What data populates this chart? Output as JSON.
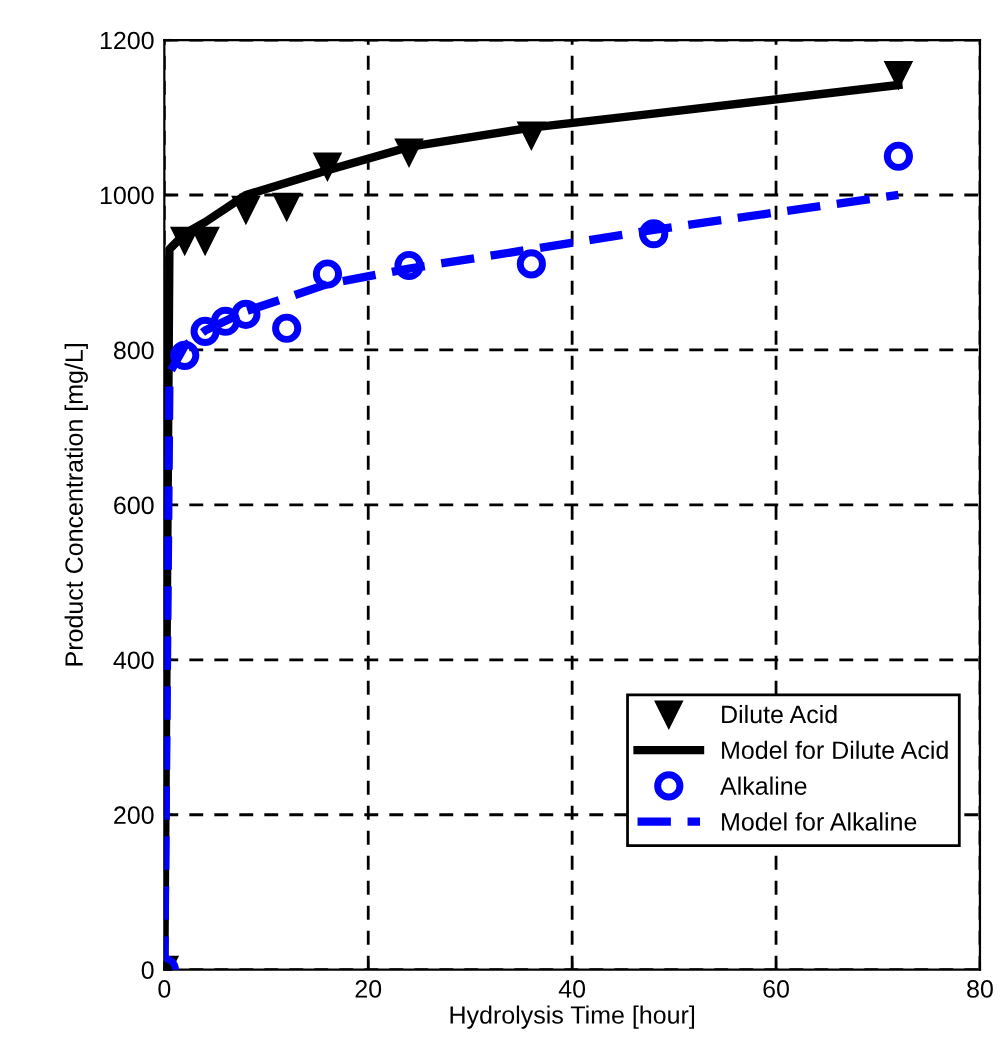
{
  "chart_data": {
    "type": "line",
    "xlabel": "Hydrolysis Time [hour]",
    "ylabel": "Product Concentration [mg/L]",
    "xlim": [
      0,
      80
    ],
    "xticks": [
      0,
      20,
      40,
      60,
      80
    ],
    "ylim": [
      0,
      1200
    ],
    "yticks": [
      0,
      200,
      400,
      600,
      800,
      1000,
      1200
    ],
    "grid": true,
    "legend": "bottom right",
    "series": [
      {
        "name": "Dilute Acid",
        "type": "scatter",
        "marker": "triangle",
        "color": "#000000",
        "x": [
          0,
          2,
          4,
          8,
          12,
          16,
          24,
          36,
          72
        ],
        "values": [
          0,
          941,
          941,
          981,
          985,
          1037,
          1055,
          1077,
          1155
        ]
      },
      {
        "name": "Model for Dilute Acid",
        "line_style": "solid",
        "color": "#000000",
        "x": [
          0,
          0.5,
          2,
          4,
          8,
          16,
          24,
          36,
          48,
          72
        ],
        "values": [
          0,
          930,
          950,
          965,
          1000,
          1032,
          1062,
          1087,
          1105,
          1142
        ]
      },
      {
        "name": "Alkaline",
        "type": "scatter",
        "marker": "circle",
        "color": "#0000ff",
        "x": [
          0,
          2,
          4,
          6,
          8,
          12,
          16,
          24,
          36,
          48,
          72
        ],
        "values": [
          0,
          793,
          824,
          837,
          846,
          828,
          898,
          909,
          911,
          950,
          1050
        ]
      },
      {
        "name": "Model for Alkaline",
        "line_style": "dashed",
        "color": "#0000ff",
        "x": [
          0,
          0.5,
          2,
          4,
          8,
          16,
          24,
          36,
          48,
          72
        ],
        "values": [
          0,
          770,
          805,
          825,
          850,
          885,
          905,
          930,
          955,
          1000
        ]
      }
    ]
  }
}
